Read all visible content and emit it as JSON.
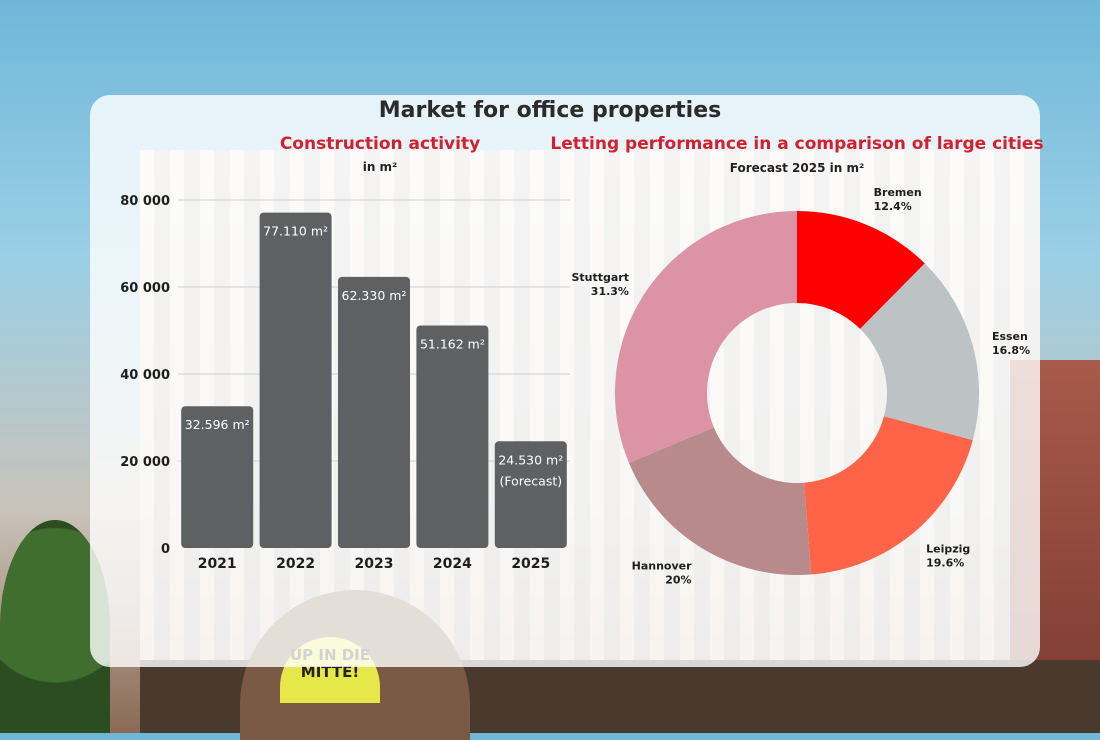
{
  "main_title": "Market for office properties",
  "background": {
    "sign_text": "UP IN DIE MITTE!"
  },
  "colors": {
    "title_red": "#d3202f",
    "bar": "#5f6062",
    "bar_label": "#ffffff"
  },
  "chart_data": [
    {
      "type": "bar",
      "title": "Construction activity",
      "subtitle": "in m²",
      "categories": [
        "2021",
        "2022",
        "2023",
        "2024",
        "2025"
      ],
      "values": [
        32596,
        77110,
        62330,
        51162,
        24530
      ],
      "data_labels": [
        "32.596 m²",
        "77.110 m²",
        "62.330 m²",
        "51.162 m²",
        "24.530 m²"
      ],
      "data_label_extra": [
        "",
        "",
        "",
        "",
        "(Forecast)"
      ],
      "y_ticks": [
        0,
        20000,
        40000,
        60000,
        80000
      ],
      "y_tick_labels": [
        "0",
        "20 000",
        "40 000",
        "60 000",
        "80 000"
      ],
      "ylim": [
        0,
        80000
      ],
      "grid": true
    },
    {
      "type": "pie",
      "variant": "donut",
      "title": "Letting performance in a comparison of large cities",
      "subtitle": "Forecast 2025 in m²",
      "slices": [
        {
          "label": "Bremen",
          "percent_label": "12.4%",
          "value": 12.4,
          "color": "#ff0000"
        },
        {
          "label": "Essen",
          "percent_label": "16.8%",
          "value": 16.8,
          "color": "#bdc3c5"
        },
        {
          "label": "Leipzig",
          "percent_label": "19.6%",
          "value": 19.6,
          "color": "#ff6448"
        },
        {
          "label": "Hannover",
          "percent_label": "20%",
          "value": 20,
          "color": "#b88a8c"
        },
        {
          "label": "Stuttgart",
          "percent_label": "31.3%",
          "value": 31.3,
          "color": "#dc93a5"
        }
      ]
    }
  ]
}
